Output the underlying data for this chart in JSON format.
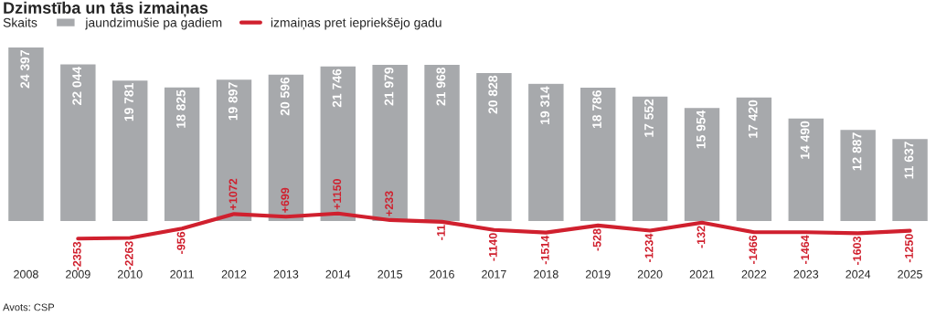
{
  "chart_data": {
    "type": "bar",
    "title": "Dzimstība un tās izmaiņas",
    "legend_title": "Skaits",
    "legend": "top left",
    "grid": false,
    "tick_labels": "x",
    "categories": [
      "2008",
      "2009",
      "2010",
      "2011",
      "2012",
      "2013",
      "2014",
      "2015",
      "2016",
      "2017",
      "2018",
      "2019",
      "2020",
      "2021",
      "2022",
      "2023",
      "2024",
      "2025"
    ],
    "series": [
      {
        "name": "jaundzimušie pa gadiem",
        "color": "#a7a9ac",
        "values": [
          24397,
          22044,
          19781,
          18825,
          19897,
          20596,
          21746,
          21979,
          21968,
          20828,
          19314,
          18786,
          17552,
          15954,
          17420,
          14490,
          12887,
          11637
        ],
        "value_labels": [
          "24 397",
          "22 044",
          "19 781",
          "18 825",
          "19 897",
          "20 596",
          "21 746",
          "21 979",
          "21 968",
          "20 828",
          "19 314",
          "18 786",
          "17 552",
          "15 954",
          "17 420",
          "14 490",
          "12 887",
          "11 637"
        ]
      },
      {
        "name": "izmaiņas pret iepriekšējo gadu",
        "type": "line",
        "color": "#d0202e",
        "values": [
          null,
          -2353,
          -2263,
          -956,
          1072,
          699,
          1150,
          233,
          -11,
          -1140,
          -1514,
          -528,
          -1234,
          -132,
          -1466,
          -1464,
          -1603,
          -1250
        ],
        "value_labels": [
          null,
          "-2353",
          "-2263",
          "-956",
          "+1072",
          "+699",
          "+1150",
          "+233",
          "-11",
          "-1140",
          "-1514",
          "-528",
          "-1234",
          "-132",
          "-1466",
          "-1464",
          "-1603",
          "-1250"
        ]
      }
    ],
    "annotations": [
      "Avots: CSP"
    ]
  }
}
